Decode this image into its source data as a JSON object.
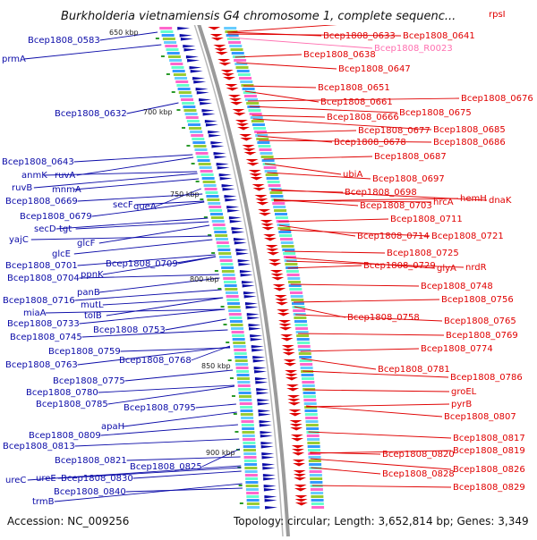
{
  "map": {
    "title": "Burkholderia vietnamiensis G4 chromosome 1, complete sequenc...",
    "accession": "Accession: NC_009256",
    "topology": "Topology: circular; Length: 3,652,814 bp; Genes: 3,349",
    "colors": {
      "forward": "#0b0ba8",
      "reverse": "#e00000",
      "rna": "#ff6fb0",
      "backbone": "#8a8a8a"
    }
  },
  "kbp_labels": [
    "650 kbp",
    "700 kbp",
    "750 kbp",
    "800 kbp",
    "850 kbp",
    "900 kbp"
  ],
  "forward_labels": [
    "Bcep1808_0583",
    "prmA",
    "Bcep1808_0632",
    "Bcep1808_0643",
    "anmK",
    "ruvA",
    "ruvB",
    "mnmA",
    "Bcep1808_0669",
    "secF",
    "queA",
    "Bcep1808_0679",
    "secD",
    "tgt",
    "yajC",
    "glcF",
    "glcE",
    "Bcep1808_0701",
    "Bcep1808_0709",
    "Bcep1808_0704",
    "ppnK",
    "panB",
    "Bcep1808_0716",
    "mutL",
    "miaA",
    "tolB",
    "Bcep1808_0733",
    "Bcep1808_0753",
    "Bcep1808_0745",
    "Bcep1808_0759",
    "Bcep1808_0763",
    "Bcep1808_0768",
    "Bcep1808_0775",
    "Bcep1808_0780",
    "Bcep1808_0795",
    "Bcep1808_0785",
    "apaH",
    "Bcep1808_0809",
    "Bcep1808_0813",
    "Bcep1808_0821",
    "Bcep1808_0825",
    "ureC",
    "ureE",
    "Bcep1808_0830",
    "Bcep1808_0840",
    "trmB"
  ],
  "reverse_labels": [
    "rpsI",
    "Bcep1808_0633",
    "Bcep1808_0641",
    "Bcep1808_0638",
    "Bcep1808_0647",
    "Bcep1808_0651",
    "Bcep1808_0676",
    "Bcep1808_0661",
    "Bcep1808_0675",
    "Bcep1808_0666",
    "Bcep1808_0677",
    "Bcep1808_0685",
    "Bcep1808_0678",
    "Bcep1808_0686",
    "Bcep1808_0687",
    "ubiA",
    "Bcep1808_0697",
    "Bcep1808_0698",
    "hemH",
    "dnaK",
    "Bcep1808_0703",
    "hrcA",
    "Bcep1808_0711",
    "Bcep1808_0714",
    "Bcep1808_0721",
    "Bcep1808_0725",
    "Bcep1808_0729",
    "glyA",
    "nrdR",
    "Bcep1808_0748",
    "Bcep1808_0756",
    "Bcep1808_0758",
    "Bcep1808_0765",
    "Bcep1808_0769",
    "Bcep1808_0774",
    "Bcep1808_0781",
    "Bcep1808_0786",
    "groEL",
    "pyrB",
    "Bcep1808_0807",
    "Bcep1808_0817",
    "Bcep1808_0820",
    "Bcep1808_0819",
    "Bcep1808_0826",
    "Bcep1808_0828",
    "Bcep1808_0829"
  ],
  "rna_labels": [
    "Bcep1808_R0023"
  ]
}
